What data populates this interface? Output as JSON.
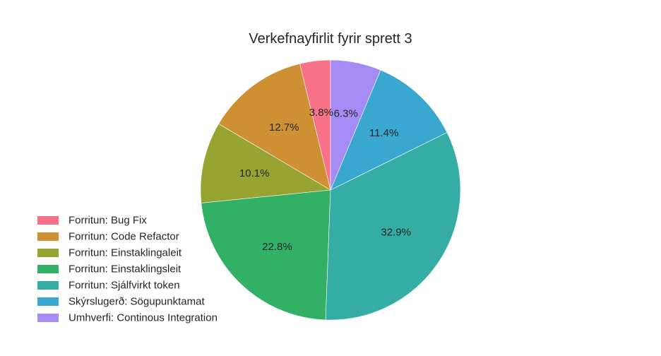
{
  "chart_data": {
    "type": "pie",
    "title": "Verkefnayfirlit fyrir sprett 3",
    "start_angle_deg": 90,
    "direction": "counterclockwise",
    "slices": [
      {
        "label": "Forritun: Bug Fix",
        "value": 3.8,
        "pct_label": "3.8%",
        "color": "#f77189"
      },
      {
        "label": "Forritun: Code Refactor",
        "value": 12.7,
        "pct_label": "12.7%",
        "color": "#ce9032"
      },
      {
        "label": "Forritun: Einstaklingaleit",
        "value": 10.1,
        "pct_label": "10.1%",
        "color": "#97a431"
      },
      {
        "label": "Forritun: Einstaklingsleit",
        "value": 22.8,
        "pct_label": "22.8%",
        "color": "#32b166"
      },
      {
        "label": "Forritun: Sjálfvirkt token",
        "value": 32.9,
        "pct_label": "32.9%",
        "color": "#36ada4"
      },
      {
        "label": "Skýrslugerð: Sögupunktamat",
        "value": 11.4,
        "pct_label": "11.4%",
        "color": "#39a7d0"
      },
      {
        "label": "Umhverfi: Continous Integration",
        "value": 6.3,
        "pct_label": "6.3%",
        "color": "#a48cf4"
      }
    ],
    "legend_position": "lower-left"
  }
}
